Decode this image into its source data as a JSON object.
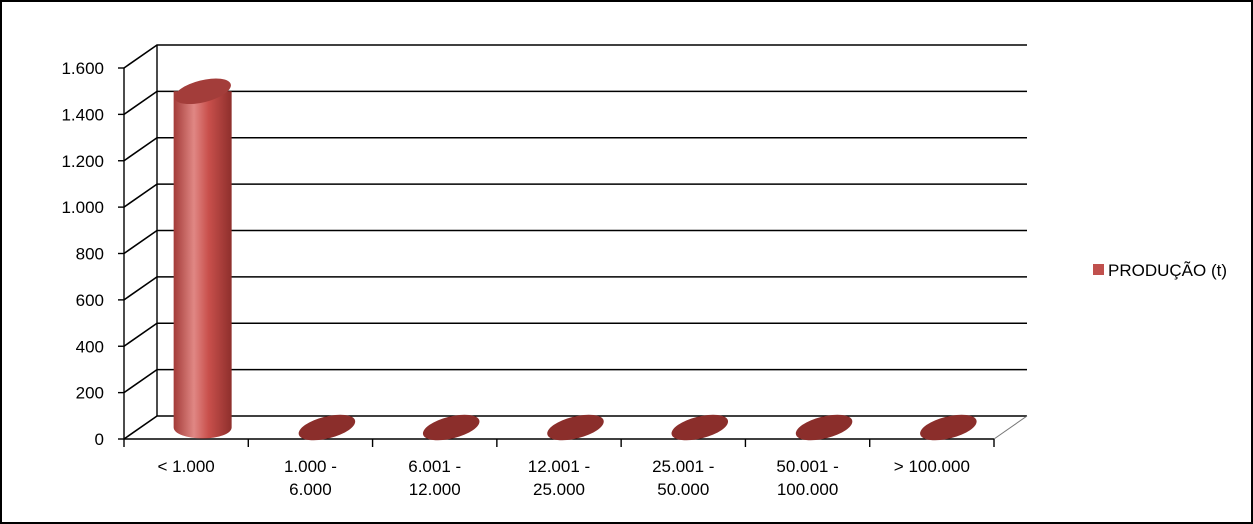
{
  "chart_data": {
    "type": "bar",
    "style": "3d-cylinder",
    "categories": [
      "< 1.000",
      "1.000 - 6.000",
      "6.001 - 12.000",
      "12.001 - 25.000",
      "25.001 - 50.000",
      "50.001 - 100.000",
      "> 100.000"
    ],
    "category_lines": [
      [
        "< 1.000"
      ],
      [
        "1.000 -",
        "6.000"
      ],
      [
        "6.001 -",
        "12.000"
      ],
      [
        "12.001 -",
        "25.000"
      ],
      [
        "25.001 -",
        "50.000"
      ],
      [
        "50.001 -",
        "100.000"
      ],
      [
        "> 100.000"
      ]
    ],
    "series": [
      {
        "name": "PRODUÇÃO (t)",
        "values": [
          1450,
          0,
          0,
          0,
          0,
          0,
          0
        ]
      }
    ],
    "ylim": [
      0,
      1600
    ],
    "yticks": [
      0,
      200,
      400,
      600,
      800,
      1000,
      1200,
      1400,
      1600
    ],
    "ytick_labels": [
      "0",
      "200",
      "400",
      "600",
      "800",
      "1.000",
      "1.200",
      "1.400",
      "1.600"
    ],
    "grid": true,
    "legend_position": "right",
    "colors": {
      "series": "#c0504d",
      "series_dark": "#8b2e2b",
      "series_top": "#a33d3a"
    }
  }
}
